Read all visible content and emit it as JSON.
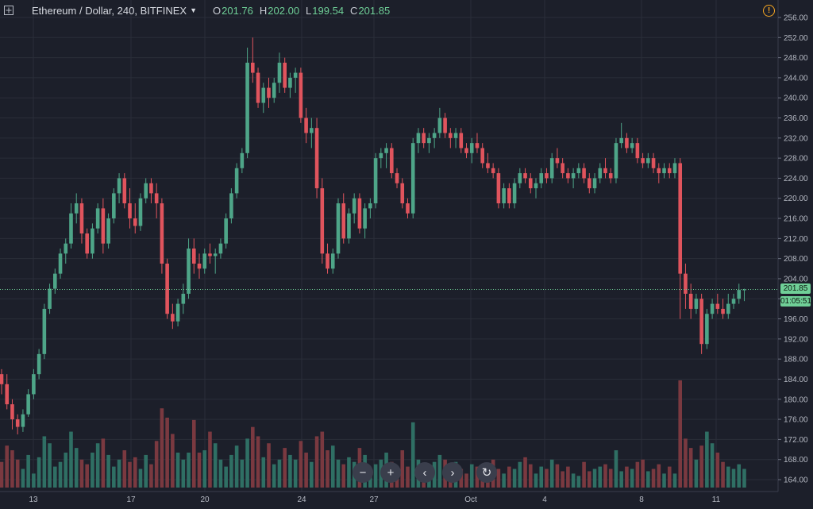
{
  "header": {
    "symbol": "Ethereum / Dollar, 240, BITFINEX",
    "open_label": "O",
    "open": "201.76",
    "high_label": "H",
    "high": "202.00",
    "low_label": "L",
    "low": "199.54",
    "close_label": "C",
    "close": "201.85"
  },
  "badges": {
    "price": "201.85",
    "countdown": "01:05:51"
  },
  "nav": {
    "zoom_out": "−",
    "zoom_in": "+",
    "scroll_left": "‹",
    "scroll_right": "›",
    "reset": "↻"
  },
  "colors": {
    "up": "#4ea588",
    "down": "#e0545d",
    "vol_up": "#2f6f64",
    "vol_down": "#7a3940",
    "background": "#1c1f2a",
    "grid": "#2a2e39"
  },
  "chart_data": {
    "type": "candlestick",
    "y_axis": {
      "min": 164,
      "max": 256,
      "ticks": [
        "256.00",
        "252.00",
        "248.00",
        "244.00",
        "240.00",
        "236.00",
        "232.00",
        "228.00",
        "224.00",
        "220.00",
        "216.00",
        "212.00",
        "208.00",
        "204.00",
        "200.00",
        "196.00",
        "192.00",
        "188.00",
        "184.00",
        "180.00",
        "176.00",
        "172.00",
        "168.00",
        "164.00"
      ]
    },
    "x_axis": {
      "labels": [
        "13",
        "17",
        "20",
        "24",
        "27",
        "Oct",
        "4",
        "8",
        "11"
      ]
    },
    "candles": [
      [
        185.0,
        186.0,
        181.0,
        183.0
      ],
      [
        183.0,
        185.0,
        178.0,
        179.0
      ],
      [
        179.0,
        180.0,
        174.0,
        176.0
      ],
      [
        176.0,
        177.0,
        173.0,
        174.5
      ],
      [
        174.5,
        178.0,
        173.5,
        177.0
      ],
      [
        177.0,
        182.0,
        176.5,
        181.0
      ],
      [
        181.0,
        186.0,
        180.0,
        185.0
      ],
      [
        185.0,
        190.0,
        184.0,
        189.0
      ],
      [
        189.0,
        199.0,
        188.0,
        198.0
      ],
      [
        198.0,
        203.0,
        197.0,
        202.0
      ],
      [
        202.0,
        206.0,
        201.0,
        205.0
      ],
      [
        205.0,
        210.0,
        204.0,
        209.0
      ],
      [
        209.0,
        212.0,
        207.0,
        211.0
      ],
      [
        211.0,
        219.0,
        210.0,
        217.0
      ],
      [
        217.0,
        221.0,
        215.0,
        219.0
      ],
      [
        219.0,
        220.0,
        211.0,
        213.0
      ],
      [
        213.0,
        214.0,
        208.0,
        209.0
      ],
      [
        209.0,
        215.0,
        208.0,
        214.0
      ],
      [
        214.0,
        219.0,
        213.0,
        218.0
      ],
      [
        218.0,
        220.0,
        209.0,
        211.0
      ],
      [
        211.0,
        217.0,
        210.0,
        216.0
      ],
      [
        216.0,
        222.0,
        215.0,
        221.0
      ],
      [
        221.0,
        225.0,
        219.0,
        224.0
      ],
      [
        224.0,
        225.0,
        218.0,
        219.0
      ],
      [
        219.0,
        222.0,
        214.0,
        216.0
      ],
      [
        216.0,
        219.0,
        213.0,
        214.5
      ],
      [
        214.5,
        221.0,
        213.5,
        220.0
      ],
      [
        220.0,
        224.0,
        219.0,
        223.0
      ],
      [
        223.0,
        224.0,
        219.0,
        221.0
      ],
      [
        221.0,
        223.0,
        216.0,
        219.0
      ],
      [
        219.0,
        220.0,
        205.0,
        207.0
      ],
      [
        207.0,
        208.0,
        196.0,
        197.0
      ],
      [
        197.0,
        199.0,
        194.0,
        195.5
      ],
      [
        195.5,
        200.0,
        194.5,
        199.0
      ],
      [
        199.0,
        203.0,
        197.0,
        201.0
      ],
      [
        201.0,
        212.0,
        200.0,
        210.0
      ],
      [
        210.0,
        212.0,
        205.0,
        207.0
      ],
      [
        207.0,
        209.0,
        204.0,
        206.0
      ],
      [
        206.0,
        210.0,
        205.0,
        209.0
      ],
      [
        209.0,
        211.0,
        207.0,
        208.5
      ],
      [
        208.5,
        210.0,
        205.0,
        209.0
      ],
      [
        209.0,
        212.0,
        208.0,
        211.0
      ],
      [
        211.0,
        217.0,
        210.0,
        216.0
      ],
      [
        216.0,
        222.0,
        215.0,
        221.0
      ],
      [
        221.0,
        227.0,
        220.0,
        226.0
      ],
      [
        226.0,
        230.0,
        225.0,
        229.0
      ],
      [
        229.0,
        250.0,
        228.0,
        247.0
      ],
      [
        247.0,
        252.0,
        243.0,
        245.0
      ],
      [
        245.0,
        246.0,
        238.0,
        239.0
      ],
      [
        239.0,
        243.0,
        237.0,
        242.0
      ],
      [
        242.0,
        244.0,
        238.0,
        240.0
      ],
      [
        240.0,
        244.0,
        239.0,
        243.0
      ],
      [
        243.0,
        249.0,
        241.0,
        247.0
      ],
      [
        247.0,
        248.0,
        241.0,
        242.0
      ],
      [
        242.0,
        245.0,
        240.0,
        244.0
      ],
      [
        244.0,
        246.0,
        241.0,
        245.0
      ],
      [
        245.0,
        246.0,
        235.0,
        236.0
      ],
      [
        236.0,
        238.0,
        231.0,
        233.0
      ],
      [
        233.0,
        236.0,
        230.0,
        234.0
      ],
      [
        234.0,
        236.0,
        220.0,
        222.0
      ],
      [
        222.0,
        224.0,
        207.0,
        209.0
      ],
      [
        209.0,
        211.0,
        205.0,
        206.0
      ],
      [
        206.0,
        210.0,
        205.0,
        209.0
      ],
      [
        209.0,
        220.0,
        208.0,
        219.0
      ],
      [
        219.0,
        221.0,
        211.0,
        212.0
      ],
      [
        212.0,
        218.0,
        211.0,
        217.0
      ],
      [
        217.0,
        221.0,
        215.0,
        220.0
      ],
      [
        220.0,
        221.0,
        213.0,
        214.0
      ],
      [
        214.0,
        219.0,
        212.0,
        218.0
      ],
      [
        218.0,
        220.0,
        216.0,
        219.0
      ],
      [
        219.0,
        229.0,
        218.0,
        228.0
      ],
      [
        228.0,
        230.0,
        226.0,
        229.0
      ],
      [
        229.0,
        231.0,
        226.0,
        230.0
      ],
      [
        230.0,
        231.0,
        224.0,
        225.0
      ],
      [
        225.0,
        226.0,
        222.0,
        223.0
      ],
      [
        223.0,
        224.0,
        218.0,
        219.0
      ],
      [
        219.0,
        220.0,
        216.0,
        217.0
      ],
      [
        217.0,
        232.0,
        216.0,
        231.0
      ],
      [
        231.0,
        234.0,
        229.0,
        233.0
      ],
      [
        233.0,
        234.0,
        230.0,
        231.0
      ],
      [
        231.0,
        233.0,
        229.0,
        232.0
      ],
      [
        232.0,
        234.0,
        230.0,
        233.0
      ],
      [
        233.0,
        238.0,
        232.0,
        236.0
      ],
      [
        236.0,
        237.0,
        232.0,
        233.0
      ],
      [
        233.0,
        234.0,
        230.0,
        232.0
      ],
      [
        232.0,
        234.0,
        230.0,
        233.0
      ],
      [
        233.0,
        234.0,
        229.0,
        230.0
      ],
      [
        230.0,
        231.0,
        228.0,
        229.0
      ],
      [
        229.0,
        232.0,
        227.0,
        231.0
      ],
      [
        231.0,
        233.0,
        229.0,
        230.0
      ],
      [
        230.0,
        231.0,
        226.0,
        227.0
      ],
      [
        227.0,
        229.0,
        225.0,
        226.0
      ],
      [
        226.0,
        227.0,
        224.0,
        225.0
      ],
      [
        225.0,
        226.0,
        218.0,
        219.0
      ],
      [
        219.0,
        223.0,
        218.0,
        222.0
      ],
      [
        222.0,
        223.0,
        218.0,
        219.0
      ],
      [
        219.0,
        224.0,
        218.0,
        223.0
      ],
      [
        223.0,
        226.0,
        222.0,
        225.0
      ],
      [
        225.0,
        226.0,
        223.0,
        224.0
      ],
      [
        224.0,
        225.0,
        221.0,
        222.0
      ],
      [
        222.0,
        224.0,
        220.0,
        223.0
      ],
      [
        223.0,
        226.0,
        222.0,
        225.0
      ],
      [
        225.0,
        226.0,
        223.0,
        224.0
      ],
      [
        224.0,
        229.0,
        223.0,
        228.0
      ],
      [
        228.0,
        230.0,
        226.0,
        227.0
      ],
      [
        227.0,
        228.0,
        224.0,
        225.0
      ],
      [
        225.0,
        226.0,
        223.0,
        224.0
      ],
      [
        224.0,
        226.0,
        222.0,
        225.0
      ],
      [
        225.0,
        227.0,
        224.0,
        226.0
      ],
      [
        226.0,
        227.0,
        223.0,
        224.0
      ],
      [
        224.0,
        225.0,
        221.0,
        222.0
      ],
      [
        222.0,
        225.0,
        221.0,
        224.0
      ],
      [
        224.0,
        227.0,
        223.0,
        226.0
      ],
      [
        226.0,
        228.0,
        224.0,
        225.0
      ],
      [
        225.0,
        226.0,
        223.0,
        224.0
      ],
      [
        224.0,
        232.0,
        223.0,
        231.0
      ],
      [
        231.0,
        235.0,
        230.0,
        232.0
      ],
      [
        232.0,
        233.0,
        229.0,
        230.0
      ],
      [
        230.0,
        232.0,
        229.0,
        231.0
      ],
      [
        231.0,
        232.0,
        227.0,
        228.0
      ],
      [
        228.0,
        229.0,
        226.0,
        227.0
      ],
      [
        227.0,
        229.0,
        226.0,
        228.0
      ],
      [
        228.0,
        229.0,
        225.0,
        226.0
      ],
      [
        226.0,
        227.0,
        223.0,
        225.0
      ],
      [
        225.0,
        227.0,
        224.0,
        226.0
      ],
      [
        226.0,
        227.0,
        224.0,
        225.0
      ],
      [
        225.0,
        228.0,
        224.0,
        227.0
      ],
      [
        227.0,
        228.0,
        196.0,
        205.0
      ],
      [
        205.0,
        207.0,
        198.0,
        201.0
      ],
      [
        201.0,
        203.0,
        196.0,
        198.0
      ],
      [
        198.0,
        201.0,
        197.0,
        200.0
      ],
      [
        200.0,
        201.0,
        189.0,
        191.0
      ],
      [
        191.0,
        198.0,
        190.0,
        197.0
      ],
      [
        197.0,
        200.0,
        196.0,
        199.0
      ],
      [
        199.0,
        201.0,
        197.0,
        198.0
      ],
      [
        198.0,
        200.0,
        196.0,
        197.0
      ],
      [
        197.0,
        201.0,
        196.0,
        199.0
      ],
      [
        199.0,
        201.0,
        198.0,
        200.0
      ],
      [
        200.0,
        203.0,
        199.0,
        201.76
      ],
      [
        201.76,
        202.0,
        199.54,
        201.85
      ]
    ],
    "volumes": [
      11,
      18,
      16,
      12,
      8,
      14,
      6,
      13,
      22,
      19,
      9,
      11,
      15,
      24,
      17,
      12,
      10,
      15,
      19,
      21,
      14,
      9,
      12,
      16,
      11,
      13,
      8,
      14,
      10,
      20,
      34,
      30,
      23,
      15,
      12,
      15,
      29,
      15,
      16,
      24,
      19,
      12,
      9,
      14,
      18,
      12,
      21,
      26,
      22,
      13,
      19,
      10,
      12,
      17,
      14,
      12,
      20,
      15,
      11,
      22,
      24,
      16,
      18,
      12,
      10,
      13,
      11,
      17,
      14,
      8,
      10,
      12,
      15,
      11,
      9,
      16,
      9,
      28,
      12,
      9,
      10,
      11,
      14,
      12,
      9,
      11,
      8,
      6,
      10,
      9,
      7,
      10,
      12,
      8,
      6,
      9,
      8,
      11,
      13,
      10,
      6,
      9,
      8,
      12,
      10,
      7,
      9,
      6,
      5,
      11,
      7,
      8,
      9,
      10,
      8,
      16,
      7,
      9,
      8,
      11,
      12,
      7,
      8,
      10,
      6,
      9,
      6,
      46,
      21,
      17,
      12,
      18,
      24,
      19,
      15,
      11,
      9,
      8,
      10,
      8
    ]
  }
}
